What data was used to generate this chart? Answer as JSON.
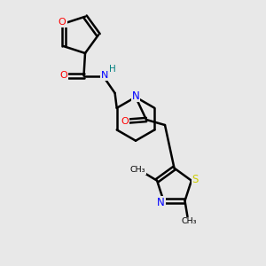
{
  "bg_color": "#e8e8e8",
  "bond_color": "#000000",
  "oxygen_color": "#ff0000",
  "nitrogen_color": "#0000ff",
  "sulfur_color": "#cccc00",
  "nh_color": "#008080",
  "line_width": 1.8,
  "figsize": [
    3.0,
    3.0
  ],
  "dpi": 100,
  "xlim": [
    0,
    10
  ],
  "ylim": [
    0,
    10
  ]
}
